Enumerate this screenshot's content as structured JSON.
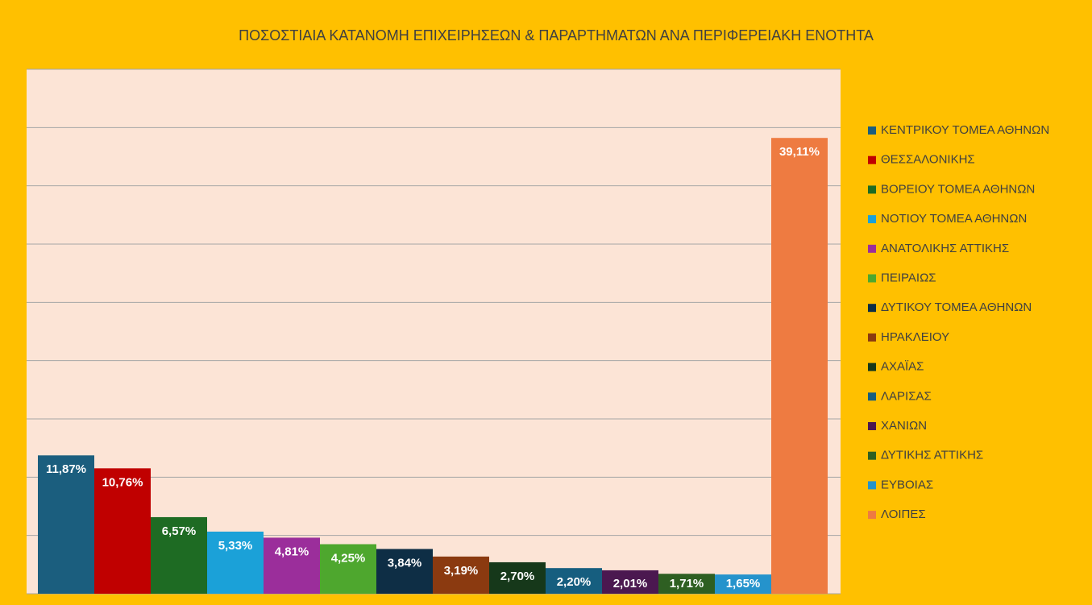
{
  "chart_data": {
    "type": "bar",
    "title": "ΠΟΣΟΣΤΙΑΙΑ ΚΑΤΑΝΟΜΗ ΕΠΙΧΕΙΡΗΣΕΩΝ & ΠΑΡΑΡΤΗΜΑΤΩΝ ΑΝΑ ΠΕΡΙΦΕΡΕΙΑΚΗ ΕΝΟΤΗΤΑ",
    "categories": [
      "ΚΕΝΤΡΙΚΟΥ ΤΟΜΕΑ ΑΘΗΝΩΝ",
      "ΘΕΣΣΑΛΟΝΙΚΗΣ",
      "ΒΟΡΕΙΟΥ ΤΟΜΕΑ ΑΘΗΝΩΝ",
      "ΝΟΤΙΟΥ ΤΟΜΕΑ ΑΘΗΝΩΝ",
      "ΑΝΑΤΟΛΙΚΗΣ ΑΤΤΙΚΗΣ",
      "ΠΕΙΡΑΙΩΣ",
      "ΔΥΤΙΚΟΥ ΤΟΜΕΑ ΑΘΗΝΩΝ",
      "ΗΡΑΚΛΕΙΟΥ",
      "ΑΧΑΪΑΣ",
      "ΛΑΡΙΣΑΣ",
      "ΧΑΝΙΩΝ",
      "ΔΥΤΙΚΗΣ ΑΤΤΙΚΗΣ",
      "ΕΥΒΟΙΑΣ",
      "ΛΟΙΠΕΣ"
    ],
    "values": [
      11.87,
      10.76,
      6.57,
      5.33,
      4.81,
      4.25,
      3.84,
      3.19,
      2.7,
      2.2,
      2.01,
      1.71,
      1.65,
      39.11
    ],
    "value_labels": [
      "11,87%",
      "10,76%",
      "6,57%",
      "5,33%",
      "4,81%",
      "4,25%",
      "3,84%",
      "3,19%",
      "2,70%",
      "2,20%",
      "2,01%",
      "1,71%",
      "1,65%",
      "39,11%"
    ],
    "colors": [
      "#1B5E7E",
      "#C00000",
      "#1E6B23",
      "#1BA1D8",
      "#9B2E9B",
      "#4EA72E",
      "#0E2E45",
      "#8B3A10",
      "#16381A",
      "#165E7F",
      "#4B1850",
      "#2E5F22",
      "#2593CC",
      "#EE7B41"
    ],
    "ylim": [
      0,
      45
    ],
    "yticks": [
      0,
      5,
      10,
      15,
      20,
      25,
      30,
      35,
      40,
      45
    ],
    "grid": true
  }
}
